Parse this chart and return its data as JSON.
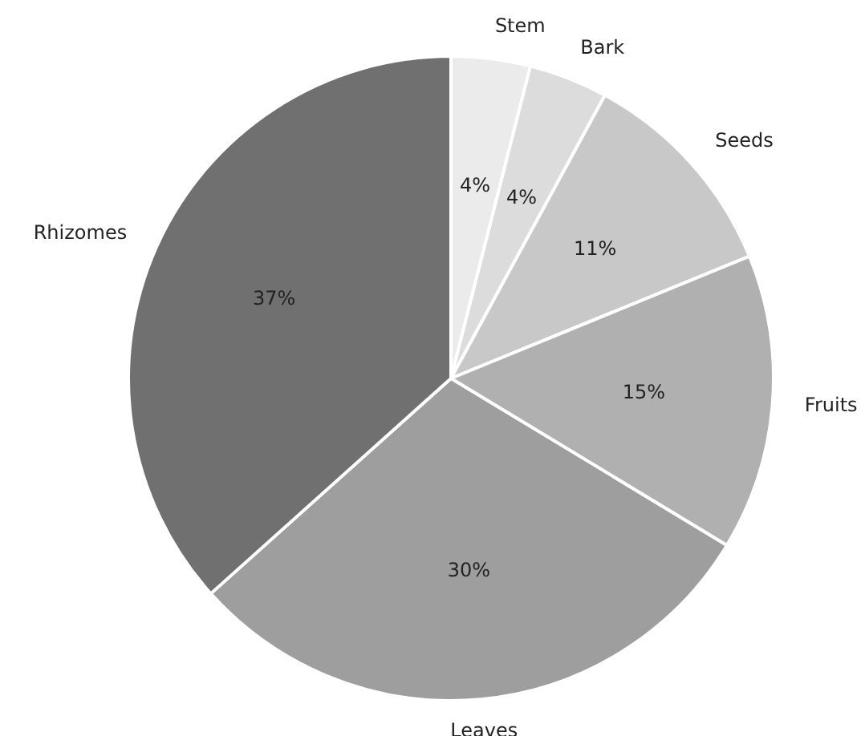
{
  "chart_data": {
    "type": "pie",
    "categories": [
      "Stem",
      "Bark",
      "Seeds",
      "Fruits",
      "Leaves",
      "Rhizomes"
    ],
    "values": [
      4,
      4,
      11,
      15,
      30,
      37
    ],
    "colors": [
      "#ebebeb",
      "#dcdcdc",
      "#c8c8c8",
      "#b0b0b0",
      "#9e9e9e",
      "#707070"
    ],
    "value_labels": [
      "4%",
      "4%",
      "11%",
      "15%",
      "30%",
      "37%"
    ]
  }
}
